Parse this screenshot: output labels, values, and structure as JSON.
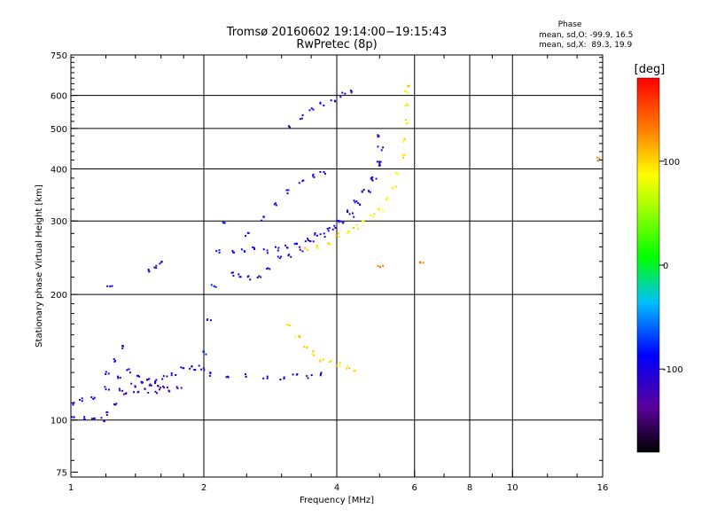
{
  "chart_data": {
    "type": "scatter",
    "title": "Tromsø 20160602 19:14:00−19:15:43",
    "subtitle": "RwPretec (8p)",
    "phase_stats": {
      "heading": "Phase",
      "line_o": "mean, sd,O: -99.9, 16.5",
      "line_x": "mean, sd,X:  89.3, 19.9"
    },
    "xlabel": "Frequency [MHz]",
    "ylabel": "Stationary phase Virtual Height [km]",
    "x_scale": "log",
    "y_scale": "log",
    "xlim": [
      1,
      16
    ],
    "ylim": [
      73,
      750
    ],
    "x_ticks": [
      1,
      2,
      4,
      6,
      8,
      10,
      16
    ],
    "x_gridlines": [
      2,
      4,
      6,
      8,
      10
    ],
    "y_ticks": [
      75,
      100,
      200,
      300,
      400,
      500,
      600,
      750
    ],
    "y_gridlines": [
      100,
      200,
      300,
      400,
      500,
      600
    ],
    "grid": true,
    "colorbar": {
      "label": "[deg]",
      "min": -180,
      "max": 180,
      "ticks": [
        -100,
        0,
        100
      ]
    },
    "traces": [
      {
        "f": [
          1.0,
          1.05,
          1.12,
          1.2,
          1.28,
          1.35,
          1.42,
          1.48,
          1.55,
          1.62,
          1.7,
          1.78,
          1.85,
          1.92,
          1.98
        ],
        "h": [
          110,
          112,
          114,
          120,
          128,
          132,
          128,
          126,
          125,
          127,
          130,
          133,
          134,
          134,
          133
        ],
        "phase": -100
      },
      {
        "f": [
          1.0,
          1.06,
          1.12,
          1.17,
          1.2,
          1.26,
          1.32,
          1.4,
          1.48,
          1.56,
          1.65,
          1.75
        ],
        "h": [
          101,
          102,
          101,
          101,
          104,
          110,
          116,
          118,
          118,
          118,
          119,
          120
        ],
        "phase": -115
      },
      {
        "f": [
          1.3,
          1.38,
          1.44,
          1.5,
          1.55,
          1.6
        ],
        "h": [
          118,
          122,
          124,
          123,
          122,
          121
        ],
        "phase": -120
      },
      {
        "f": [
          1.2,
          1.26,
          1.32
        ],
        "h": [
          130,
          140,
          150
        ],
        "phase": -95
      },
      {
        "f": [
          2.05,
          2.25,
          2.5,
          2.75,
          3.0,
          3.2,
          3.45,
          3.7
        ],
        "h": [
          129,
          128,
          128,
          127,
          127,
          128,
          128,
          129
        ],
        "phase": -105
      },
      {
        "f": [
          2.3,
          2.45,
          2.6,
          2.75,
          2.9,
          3.05,
          3.2,
          3.4,
          3.6,
          3.8,
          4.0,
          4.2,
          4.4,
          4.6,
          4.8,
          4.95,
          5.0
        ],
        "h": [
          255,
          255,
          258,
          255,
          258,
          262,
          268,
          272,
          280,
          288,
          300,
          318,
          335,
          355,
          380,
          410,
          450
        ],
        "phase": -95
      },
      {
        "f": [
          2.3,
          2.4,
          2.5,
          2.65,
          2.8,
          2.95,
          3.1,
          3.3,
          3.5,
          3.7,
          3.9,
          4.1,
          4.3,
          4.5,
          4.7,
          4.85,
          4.95,
          5.0
        ],
        "h": [
          225,
          222,
          220,
          222,
          232,
          245,
          250,
          258,
          268,
          278,
          290,
          300,
          312,
          330,
          352,
          380,
          420,
          480
        ],
        "phase": -110
      },
      {
        "f": [
          3.4,
          3.6,
          3.8,
          4.0,
          4.2,
          4.4,
          4.6,
          4.8,
          5.0,
          5.2,
          5.4,
          5.5,
          5.6,
          5.65,
          5.7,
          5.72,
          5.75,
          5.78
        ],
        "h": [
          258,
          262,
          268,
          278,
          285,
          292,
          300,
          310,
          322,
          340,
          365,
          390,
          430,
          470,
          520,
          570,
          610,
          640
        ],
        "phase": 95
      },
      {
        "f": [
          3.1,
          3.25,
          3.4,
          3.55,
          3.7,
          3.85,
          4.0,
          4.2,
          4.4
        ],
        "h": [
          168,
          160,
          150,
          145,
          140,
          138,
          136,
          135,
          132
        ],
        "phase": 100
      },
      {
        "f": [
          2.0,
          2.05,
          2.1,
          2.15,
          2.2
        ],
        "h": [
          145,
          175,
          210,
          255,
          300
        ],
        "phase": -90
      },
      {
        "f": [
          2.5,
          2.7,
          2.9,
          3.1,
          3.3,
          3.5,
          3.7
        ],
        "h": [
          280,
          305,
          330,
          355,
          375,
          385,
          395
        ],
        "phase": -95
      },
      {
        "f": [
          3.1,
          3.3,
          3.5,
          3.7,
          3.9,
          4.1,
          4.3
        ],
        "h": [
          510,
          535,
          555,
          575,
          590,
          605,
          620
        ],
        "phase": -100
      },
      {
        "f": [
          1.5,
          1.55,
          1.6
        ],
        "h": [
          228,
          235,
          240
        ],
        "phase": -110
      },
      {
        "f": [
          1.22
        ],
        "h": [
          210
        ],
        "phase": -100
      },
      {
        "f": [
          5.0,
          6.2,
          15.5
        ],
        "h": [
          235,
          238,
          425
        ],
        "phase": 130
      }
    ]
  }
}
